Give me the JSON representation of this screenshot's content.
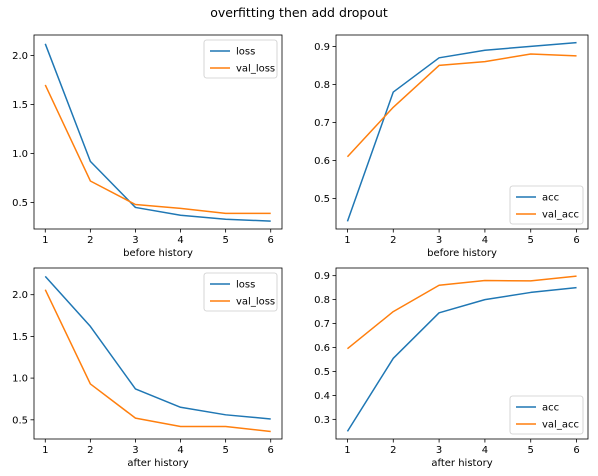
{
  "figure_title": "overfitting then add dropout",
  "colors": {
    "blue": "#1f77b4",
    "orange": "#ff7f0e"
  },
  "chart_data": [
    {
      "type": "line",
      "xlabel": "before history",
      "x": [
        1,
        2,
        3,
        4,
        5,
        6
      ],
      "xlim": [
        0.75,
        6.25
      ],
      "ylim": [
        0.23,
        2.21
      ],
      "yticks": [
        0.5,
        1.0,
        1.5,
        2.0
      ],
      "ytick_labels": [
        "0.5",
        "1.0",
        "1.5",
        "2.0"
      ],
      "legend_loc": "upper-right",
      "series": [
        {
          "name": "loss",
          "color": "#1f77b4",
          "values": [
            2.12,
            0.92,
            0.45,
            0.37,
            0.33,
            0.31
          ]
        },
        {
          "name": "val_loss",
          "color": "#ff7f0e",
          "values": [
            1.7,
            0.72,
            0.48,
            0.44,
            0.39,
            0.39
          ]
        }
      ]
    },
    {
      "type": "line",
      "xlabel": "before history",
      "x": [
        1,
        2,
        3,
        4,
        5,
        6
      ],
      "xlim": [
        0.75,
        6.25
      ],
      "ylim": [
        0.42,
        0.93
      ],
      "yticks": [
        0.5,
        0.6,
        0.7,
        0.8,
        0.9
      ],
      "ytick_labels": [
        "0.5",
        "0.6",
        "0.7",
        "0.8",
        "0.9"
      ],
      "legend_loc": "lower-right",
      "series": [
        {
          "name": "acc",
          "color": "#1f77b4",
          "values": [
            0.44,
            0.78,
            0.87,
            0.89,
            0.9,
            0.91
          ]
        },
        {
          "name": "val_acc",
          "color": "#ff7f0e",
          "values": [
            0.61,
            0.74,
            0.85,
            0.86,
            0.88,
            0.875
          ]
        }
      ]
    },
    {
      "type": "line",
      "xlabel": "after history",
      "x": [
        1,
        2,
        3,
        4,
        5,
        6
      ],
      "xlim": [
        0.75,
        6.25
      ],
      "ylim": [
        0.27,
        2.32
      ],
      "yticks": [
        0.5,
        1.0,
        1.5,
        2.0
      ],
      "ytick_labels": [
        "0.5",
        "1.0",
        "1.5",
        "2.0"
      ],
      "legend_loc": "upper-right",
      "series": [
        {
          "name": "loss",
          "color": "#1f77b4",
          "values": [
            2.22,
            1.62,
            0.87,
            0.65,
            0.56,
            0.51
          ]
        },
        {
          "name": "val_loss",
          "color": "#ff7f0e",
          "values": [
            2.06,
            0.93,
            0.52,
            0.42,
            0.42,
            0.36
          ]
        }
      ]
    },
    {
      "type": "line",
      "xlabel": "after history",
      "x": [
        1,
        2,
        3,
        4,
        5,
        6
      ],
      "xlim": [
        0.75,
        6.25
      ],
      "ylim": [
        0.218,
        0.932
      ],
      "yticks": [
        0.3,
        0.4,
        0.5,
        0.6,
        0.7,
        0.8,
        0.9
      ],
      "ytick_labels": [
        "0.3",
        "0.4",
        "0.5",
        "0.6",
        "0.7",
        "0.8",
        "0.9"
      ],
      "legend_loc": "lower-right",
      "series": [
        {
          "name": "acc",
          "color": "#1f77b4",
          "values": [
            0.25,
            0.555,
            0.745,
            0.8,
            0.83,
            0.85
          ]
        },
        {
          "name": "val_acc",
          "color": "#ff7f0e",
          "values": [
            0.595,
            0.75,
            0.86,
            0.88,
            0.878,
            0.898
          ]
        }
      ]
    }
  ]
}
